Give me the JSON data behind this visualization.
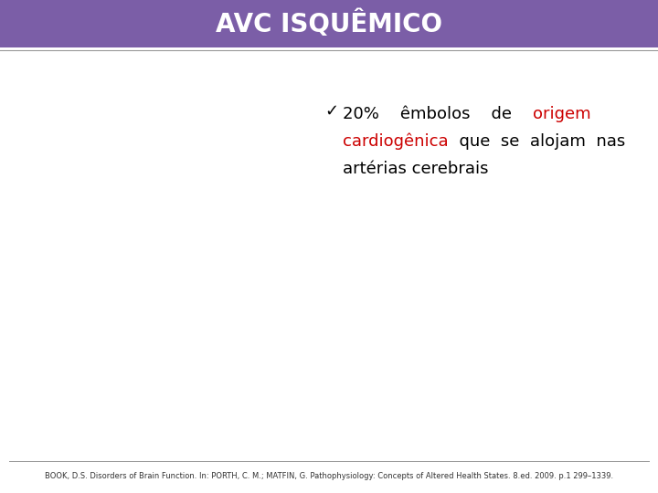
{
  "title": "AVC ISQUÊMICO",
  "title_bg_color": "#7B5EA7",
  "title_text_color": "#FFFFFF",
  "title_fontsize": 20,
  "body_bg_color": "#FFFFFF",
  "bullet_char": "✓",
  "bullet_color": "#000000",
  "bullet_fontsize": 13,
  "text_line1_black": "20%    êmbolos    de    ",
  "text_line1_red": "origem",
  "text_line2_red": "cardiogênica",
  "text_line2_black": "  que  se  alojam  nas",
  "text_line3_black": "artérias cerebrais",
  "footer_text": "BOOK, D.S. Disorders of Brain Function. In: PORTH, C. M.; MATFIN, G. Pathophysiology: Concepts of Altered Health States. 8.ed. 2009. p.1 299–1339.",
  "footer_fontsize": 6.0,
  "footer_color": "#333333",
  "red_color": "#CC0000",
  "black_color": "#000000",
  "separator_color": "#999999"
}
